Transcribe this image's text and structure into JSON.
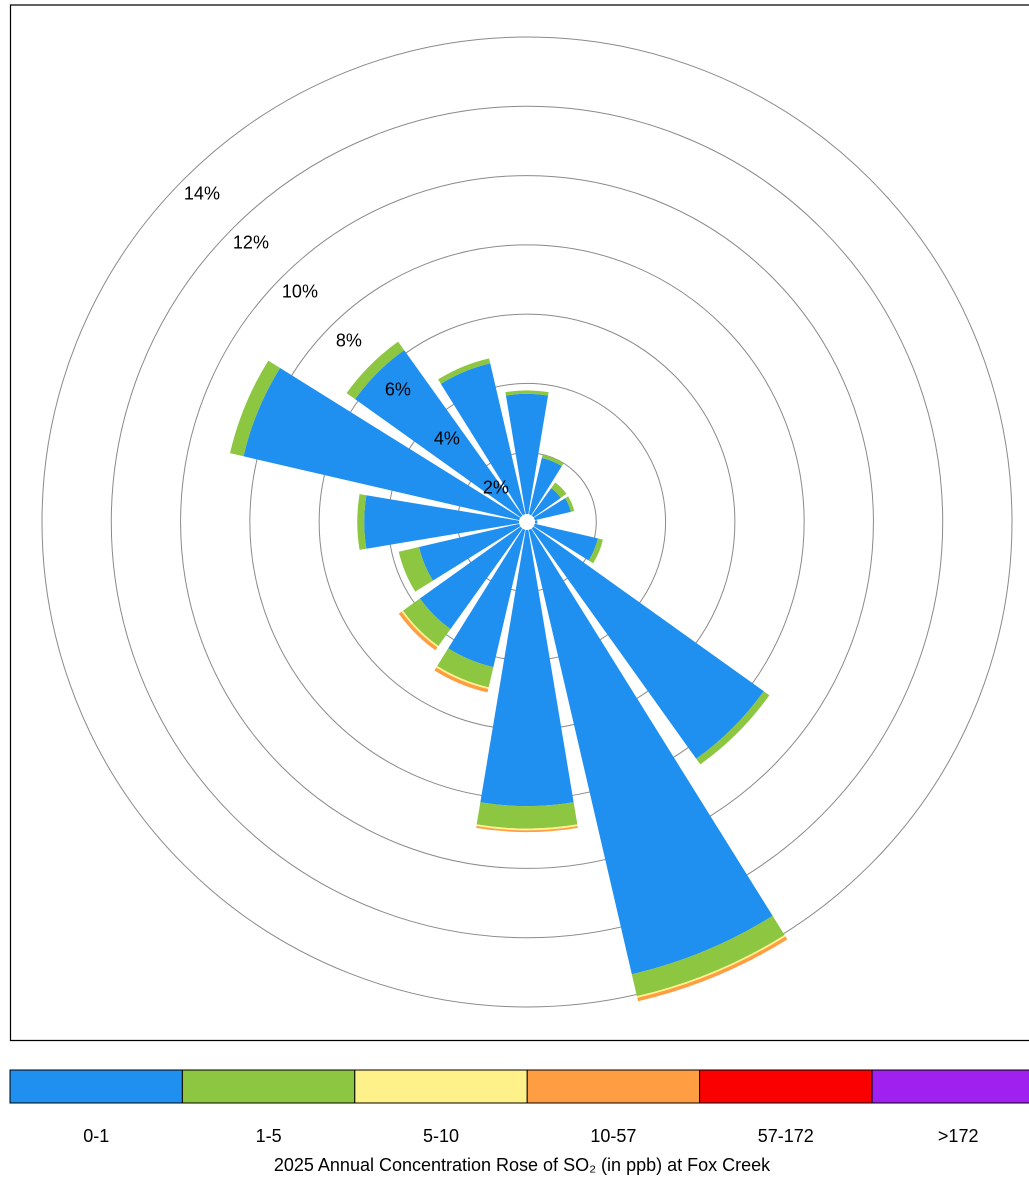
{
  "chart_data": {
    "type": "windrose",
    "title": "2025 Annual Concentration Rose of SO₂ (in ppb) at Fox Creek",
    "categories": [
      null,
      null,
      null,
      null,
      null,
      null,
      null,
      null,
      null,
      null,
      null,
      null,
      null,
      null,
      null,
      null
    ],
    "series": [
      {
        "name": "0-1",
        "color": "#1f8ff0",
        "values": [
          3.7,
          1.9,
          1.2,
          1.3,
          0.3,
          2.1,
          8.4,
          13.4,
          8.2,
          4.3,
          3.8,
          3.2,
          4.7,
          8.4,
          6.1,
          4.7
        ]
      },
      {
        "name": "1-5",
        "color": "#8dc641",
        "values": [
          0.1,
          0.1,
          0.2,
          0.1,
          0,
          0.15,
          0.2,
          0.65,
          0.65,
          0.6,
          0.6,
          0.6,
          0.2,
          0.4,
          0.3,
          0.15
        ]
      },
      {
        "name": "5-10",
        "color": "#fff18a",
        "values": [
          0,
          0,
          0,
          0,
          0,
          0,
          0,
          0.05,
          0.05,
          0.05,
          0.05,
          0,
          0,
          0,
          0,
          0
        ]
      },
      {
        "name": "10-57",
        "color": "#ff9d42",
        "values": [
          0,
          0,
          0,
          0,
          0,
          0,
          0,
          0.1,
          0.05,
          0.1,
          0.1,
          0,
          0,
          0,
          0,
          0
        ]
      },
      {
        "name": "57-172",
        "color": "#fb0000",
        "values": [
          0,
          0,
          0,
          0,
          0,
          0,
          0,
          0,
          0,
          0,
          0,
          0,
          0,
          0,
          0,
          0
        ]
      },
      {
        "name": ">172",
        "color": "#a020f0",
        "values": [
          0,
          0,
          0,
          0,
          0,
          0,
          0,
          0,
          0,
          0,
          0,
          0,
          0,
          0,
          0,
          0
        ]
      }
    ],
    "ylim": [
      0,
      14
    ],
    "yticks": [
      {
        "value": 2,
        "label": "2%"
      },
      {
        "value": 4,
        "label": "4%"
      },
      {
        "value": 6,
        "label": "6%"
      },
      {
        "value": 8,
        "label": "8%"
      },
      {
        "value": 10,
        "label": "10%"
      },
      {
        "value": 12,
        "label": "12%"
      },
      {
        "value": 14,
        "label": "14%"
      }
    ],
    "grid": true
  }
}
